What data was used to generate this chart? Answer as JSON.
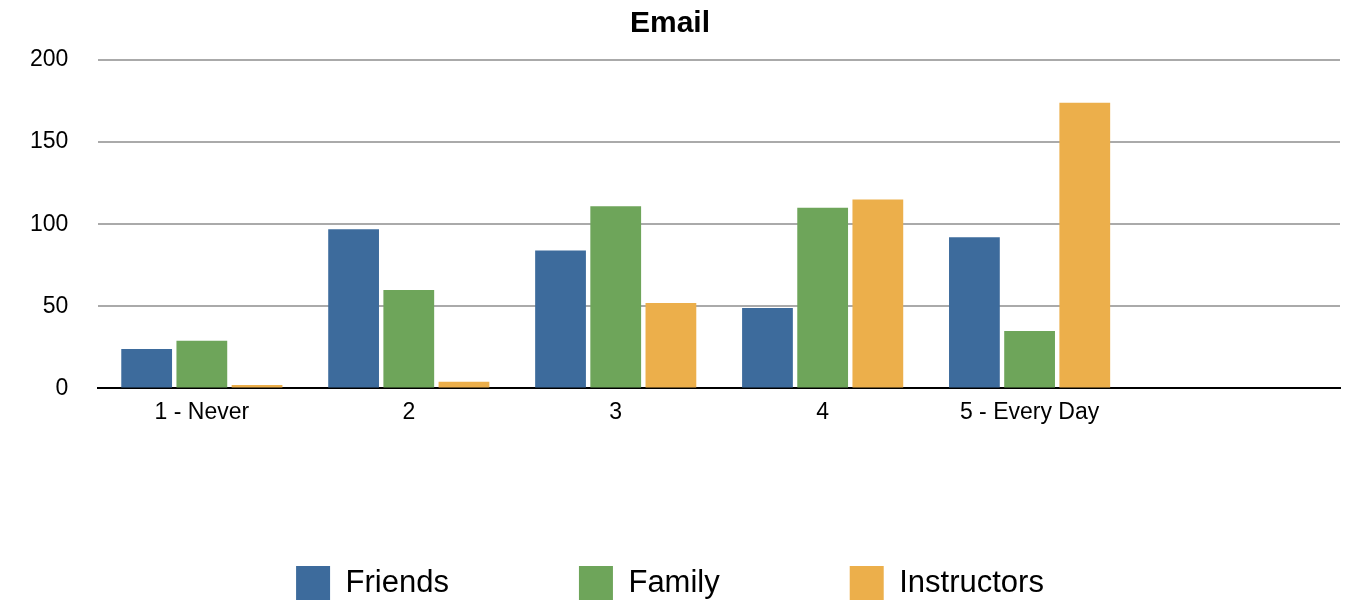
{
  "chart_data": {
    "type": "bar",
    "title": "Email",
    "categories": [
      "1 - Never",
      "2",
      "3",
      "4",
      "5 - Every Day",
      null
    ],
    "series": [
      {
        "name": "Friends",
        "color": "#3d6b9c",
        "values": [
          24,
          97,
          84,
          49,
          92,
          null
        ]
      },
      {
        "name": "Family",
        "color": "#6ea55a",
        "values": [
          29,
          60,
          111,
          110,
          35,
          null
        ]
      },
      {
        "name": "Instructors",
        "color": "#ecaf4b",
        "values": [
          2,
          4,
          52,
          115,
          174,
          null
        ]
      }
    ],
    "ylim": [
      0,
      200
    ],
    "yticks": [
      0,
      50,
      100,
      150,
      200
    ],
    "grid": "y",
    "legend": "bottom"
  }
}
